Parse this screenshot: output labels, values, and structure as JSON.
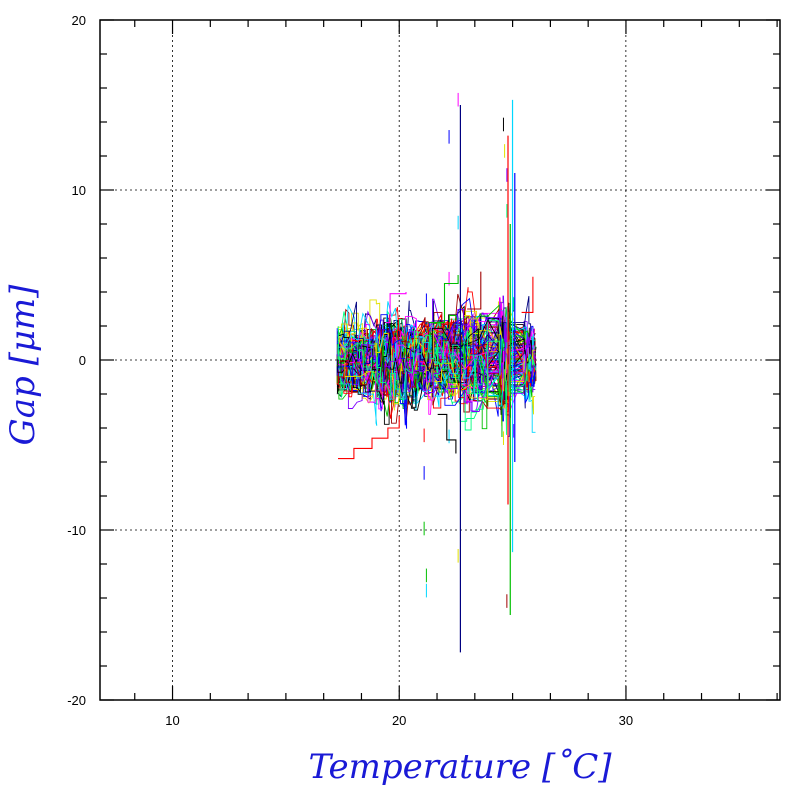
{
  "chart_data": {
    "type": "line",
    "title": "",
    "xlabel": "Temperature [˚C]",
    "ylabel": "Gap [μm]",
    "xlim": [
      6.8,
      36.8
    ],
    "ylim": [
      -20,
      20
    ],
    "xticks": [
      10,
      20,
      30
    ],
    "yticks": [
      -20,
      -10,
      0,
      10,
      20
    ],
    "x_minor_step": 1.667,
    "y_minor_step": 2,
    "grid": true,
    "legend": "none",
    "palette": [
      "#ff0000",
      "#00c000",
      "#0000ff",
      "#00d8ff",
      "#ff00ff",
      "#e0e000",
      "#000000",
      "#7f00ff",
      "#00ff80",
      "#a00000",
      "#000080"
    ],
    "series_count": 130,
    "clusters": [
      {
        "x_range": [
          17.3,
          19.0
        ],
        "y_spread": 1.2
      },
      {
        "x_range": [
          19.0,
          20.3
        ],
        "y_spread": 1.5
      },
      {
        "x_range": [
          20.3,
          21.5
        ],
        "y_spread": 1.3
      },
      {
        "x_range": [
          21.5,
          23.9
        ],
        "y_spread": 1.6
      },
      {
        "x_range": [
          24.4,
          24.9
        ],
        "y_spread": 1.8
      },
      {
        "x_range": [
          25.5,
          26.0
        ],
        "y_spread": 1.0
      }
    ],
    "features": [
      {
        "kind": "vline",
        "x": 22.7,
        "y_range": [
          -17.2,
          15.0
        ],
        "color": "#000080"
      },
      {
        "kind": "vline",
        "x": 24.8,
        "y_range": [
          -8.5,
          13.2
        ],
        "color": "#ff0000"
      },
      {
        "kind": "vline",
        "x": 25.0,
        "y_range": [
          -11.3,
          15.3
        ],
        "color": "#00d8ff"
      },
      {
        "kind": "vline",
        "x": 24.9,
        "y_range": [
          -15.0,
          8.0
        ],
        "color": "#00c000"
      },
      {
        "kind": "vline",
        "x": 25.1,
        "y_range": [
          -6.0,
          11.0
        ],
        "color": "#0000ff"
      },
      {
        "kind": "step",
        "points": [
          [
            17.3,
            -5.8
          ],
          [
            18.0,
            -5.2
          ],
          [
            18.8,
            -4.6
          ],
          [
            19.5,
            -4.0
          ],
          [
            20.0,
            -3.3
          ]
        ],
        "color": "#ff0000"
      },
      {
        "kind": "step",
        "points": [
          [
            21.3,
            2.2
          ],
          [
            22.0,
            4.5
          ],
          [
            22.6,
            5.0
          ]
        ],
        "color": "#00c000"
      },
      {
        "kind": "step",
        "points": [
          [
            23.0,
            3.0
          ],
          [
            23.6,
            5.2
          ]
        ],
        "color": "#a00000"
      },
      {
        "kind": "step",
        "points": [
          [
            25.4,
            2.8
          ],
          [
            25.9,
            4.9
          ]
        ],
        "color": "#ff0000"
      },
      {
        "kind": "step",
        "points": [
          [
            21.7,
            -3.2
          ],
          [
            22.1,
            -4.7
          ],
          [
            22.5,
            -5.5
          ]
        ],
        "color": "#000000"
      },
      {
        "kind": "step",
        "points": [
          [
            19.4,
            2.2
          ],
          [
            19.6,
            3.9
          ],
          [
            20.3,
            4.0
          ]
        ],
        "color": "#ff00ff"
      }
    ]
  }
}
